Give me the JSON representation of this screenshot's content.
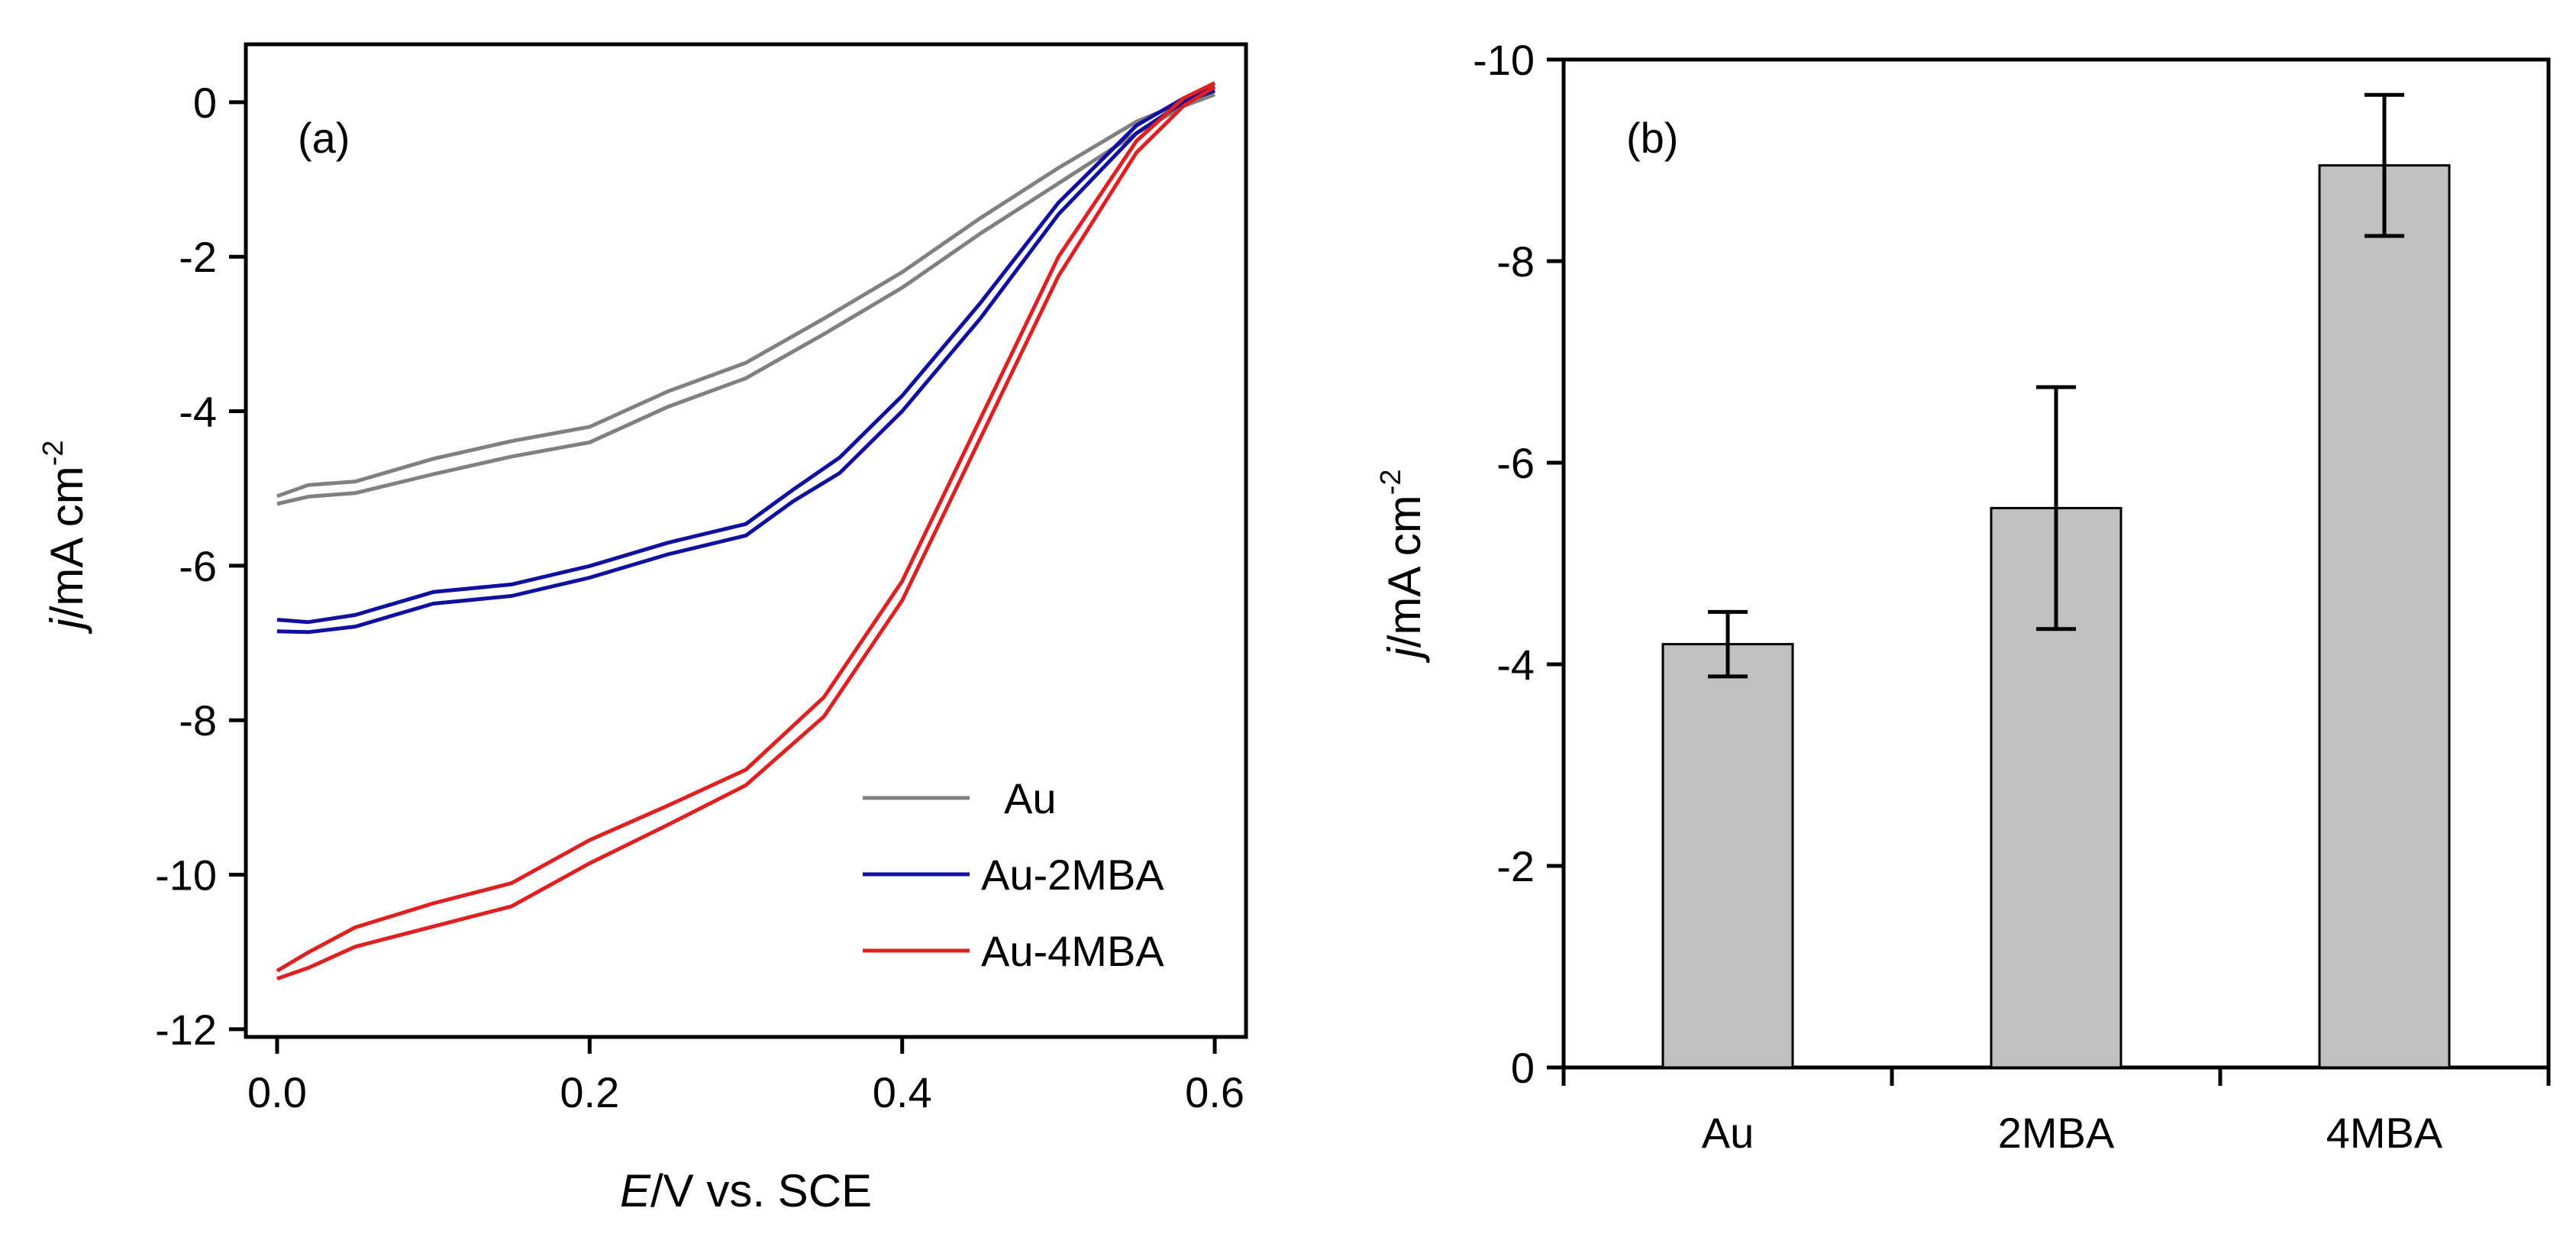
{
  "chart_data": [
    {
      "id": "a",
      "type": "line",
      "panel_label": "(a)",
      "xlabel_italic": "E",
      "xlabel_rest": "/V vs. SCE",
      "ylabel_italic": "j",
      "ylabel_rest": "/mA cm",
      "ylabel_exp": "-2",
      "xlim": [
        -0.02,
        0.62
      ],
      "ylim": [
        -12.1,
        0.75
      ],
      "xticks": [
        {
          "value": 0.0,
          "label": "0.0"
        },
        {
          "value": 0.2,
          "label": "0.2"
        },
        {
          "value": 0.4,
          "label": "0.4"
        },
        {
          "value": 0.6,
          "label": "0.6"
        }
      ],
      "yticks": [
        {
          "value": 0,
          "label": "0"
        },
        {
          "value": -2,
          "label": "-2"
        },
        {
          "value": -4,
          "label": "-4"
        },
        {
          "value": -6,
          "label": "-6"
        },
        {
          "value": -8,
          "label": "-8"
        },
        {
          "value": -10,
          "label": "-10"
        },
        {
          "value": -12,
          "label": "-12"
        }
      ],
      "legend_position": "bottom-right",
      "series": [
        {
          "name": "Au",
          "color": "#808080",
          "upper": {
            "x": [
              0.0,
              0.02,
              0.05,
              0.1,
              0.15,
              0.2,
              0.25,
              0.3,
              0.35,
              0.4,
              0.45,
              0.5,
              0.55,
              0.58,
              0.6
            ],
            "y": [
              -5.1,
              -5.0,
              -4.85,
              -4.65,
              -4.4,
              -4.15,
              -3.8,
              -3.35,
              -2.8,
              -2.2,
              -1.5,
              -0.85,
              -0.25,
              0.0,
              0.15
            ]
          },
          "lower": {
            "x": [
              0.0,
              0.02,
              0.05,
              0.1,
              0.15,
              0.2,
              0.25,
              0.3,
              0.35,
              0.4,
              0.45,
              0.5,
              0.55,
              0.58,
              0.6
            ],
            "y": [
              -5.2,
              -5.15,
              -5.0,
              -4.85,
              -4.6,
              -4.35,
              -4.0,
              -3.55,
              -3.0,
              -2.4,
              -1.7,
              -1.05,
              -0.4,
              -0.05,
              0.1
            ]
          }
        },
        {
          "name": "Au-2MBA",
          "color": "#1010a0",
          "upper": {
            "x": [
              0.0,
              0.02,
              0.05,
              0.1,
              0.15,
              0.2,
              0.25,
              0.3,
              0.33,
              0.36,
              0.4,
              0.45,
              0.5,
              0.55,
              0.58,
              0.6
            ],
            "y": [
              -6.75,
              -6.72,
              -6.6,
              -6.4,
              -6.2,
              -6.0,
              -5.75,
              -5.4,
              -5.05,
              -4.6,
              -3.8,
              -2.6,
              -1.3,
              -0.3,
              0.05,
              0.2
            ]
          },
          "lower": {
            "x": [
              0.0,
              0.02,
              0.05,
              0.1,
              0.15,
              0.2,
              0.25,
              0.3,
              0.33,
              0.36,
              0.4,
              0.45,
              0.5,
              0.55,
              0.58,
              0.6
            ],
            "y": [
              -6.9,
              -6.85,
              -6.75,
              -6.55,
              -6.35,
              -6.15,
              -5.9,
              -5.55,
              -5.2,
              -4.8,
              -4.0,
              -2.8,
              -1.45,
              -0.4,
              0.0,
              0.15
            ]
          }
        },
        {
          "name": "Au-4MBA",
          "color": "#e02020",
          "upper": {
            "x": [
              0.0,
              0.02,
              0.05,
              0.1,
              0.15,
              0.2,
              0.25,
              0.3,
              0.35,
              0.4,
              0.45,
              0.5,
              0.55,
              0.58,
              0.6
            ],
            "y": [
              -11.3,
              -10.95,
              -10.7,
              -10.4,
              -10.05,
              -9.6,
              -9.1,
              -8.6,
              -7.7,
              -6.2,
              -4.1,
              -2.0,
              -0.5,
              0.05,
              0.25
            ]
          },
          "lower": {
            "x": [
              0.0,
              0.02,
              0.05,
              0.1,
              0.15,
              0.2,
              0.25,
              0.3,
              0.35,
              0.4,
              0.45,
              0.5,
              0.55,
              0.58,
              0.6
            ],
            "y": [
              -11.4,
              -11.15,
              -10.95,
              -10.7,
              -10.35,
              -9.9,
              -9.35,
              -8.8,
              -7.95,
              -6.45,
              -4.35,
              -2.25,
              -0.65,
              -0.05,
              0.2
            ]
          }
        }
      ]
    },
    {
      "id": "b",
      "type": "bar",
      "panel_label": "(b)",
      "ylabel_italic": "j",
      "ylabel_rest": "/mA cm",
      "ylabel_exp": "-2",
      "ylim": [
        0,
        -10
      ],
      "yticks": [
        {
          "value": 0,
          "label": "0"
        },
        {
          "value": -2,
          "label": "-2"
        },
        {
          "value": -4,
          "label": "-4"
        },
        {
          "value": -6,
          "label": "-6"
        },
        {
          "value": -8,
          "label": "-8"
        },
        {
          "value": -10,
          "label": "-10"
        }
      ],
      "categories": [
        "Au",
        "2MBA",
        "4MBA"
      ],
      "values": [
        -4.2,
        -5.55,
        -8.95
      ],
      "errors": [
        0.32,
        1.2,
        0.7
      ],
      "bar_color": "#c0c0c0"
    }
  ]
}
